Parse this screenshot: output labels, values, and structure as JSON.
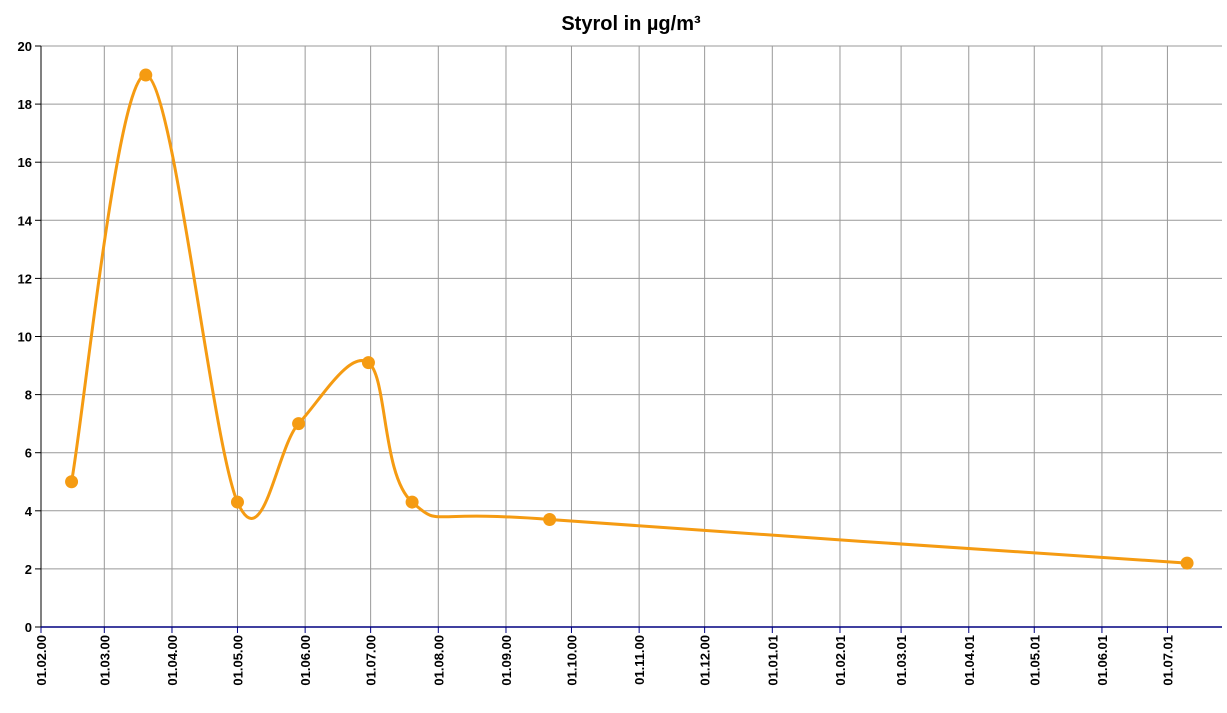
{
  "chart_data": {
    "type": "line",
    "title": "Styrol in µg/m³",
    "x": [
      "15.02.00",
      "20.03.00",
      "01.05.00",
      "29.05.00",
      "30.06.00",
      "20.07.00",
      "21.09.00",
      "10.07.01"
    ],
    "values": [
      5,
      19,
      4.3,
      7,
      9.1,
      4.3,
      3.7,
      2.2
    ],
    "color": "#f59b12",
    "smooth": true,
    "xlim": [
      "01.02.00",
      "26.07.01"
    ],
    "xticks": [
      "01.02.00",
      "01.03.00",
      "01.04.00",
      "01.05.00",
      "01.06.00",
      "01.07.00",
      "01.08.00",
      "01.09.00",
      "01.10.00",
      "01.11.00",
      "01.12.00",
      "01.01.01",
      "01.02.01",
      "01.03.01",
      "01.04.01",
      "01.05.01",
      "01.06.01",
      "01.07.01"
    ],
    "ylim": [
      0,
      20
    ],
    "yticks": [
      0,
      2,
      4,
      6,
      8,
      10,
      12,
      14,
      16,
      18,
      20
    ],
    "grid": true
  }
}
